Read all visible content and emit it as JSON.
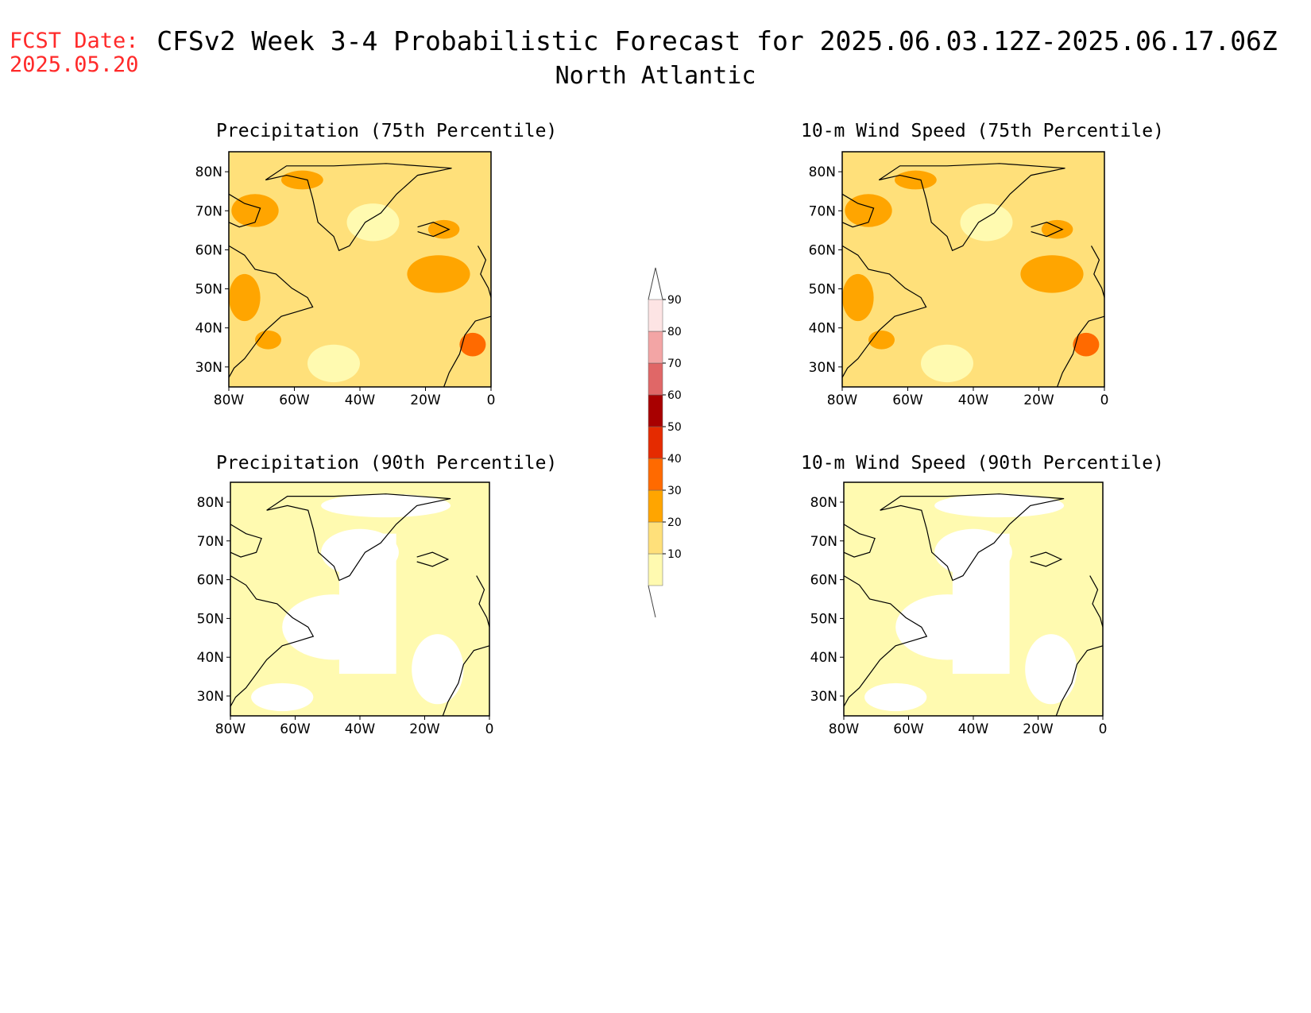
{
  "header": {
    "fcst_label": "FCST Date:",
    "fcst_date": "2025.05.20",
    "title": "CFSv2 Week 3-4 Probabilistic Forecast for 2025.06.03.12Z-2025.06.17.06Z",
    "subtitle": "North Atlantic"
  },
  "panels": [
    {
      "title": "Precipitation (75th Percentile)",
      "level": "high"
    },
    {
      "title": "10-m Wind Speed (75th Percentile)",
      "level": "high"
    },
    {
      "title": "Precipitation (90th Percentile)",
      "level": "low"
    },
    {
      "title": "10-m Wind Speed (90th Percentile)",
      "level": "low"
    }
  ],
  "axes": {
    "lat_labels": [
      "80N",
      "70N",
      "60N",
      "50N",
      "40N",
      "30N"
    ],
    "lon_labels": [
      "80W",
      "60W",
      "40W",
      "20W",
      "0"
    ]
  },
  "colorbar": {
    "levels": [
      "10",
      "20",
      "30",
      "40",
      "50",
      "60",
      "70",
      "80",
      "90"
    ],
    "colors": [
      "#fffab0",
      "#ffe07a",
      "#ffa500",
      "#ff6a00",
      "#e52b00",
      "#a80000",
      "#e06767",
      "#f3a5a5",
      "#fde4e4"
    ]
  }
}
